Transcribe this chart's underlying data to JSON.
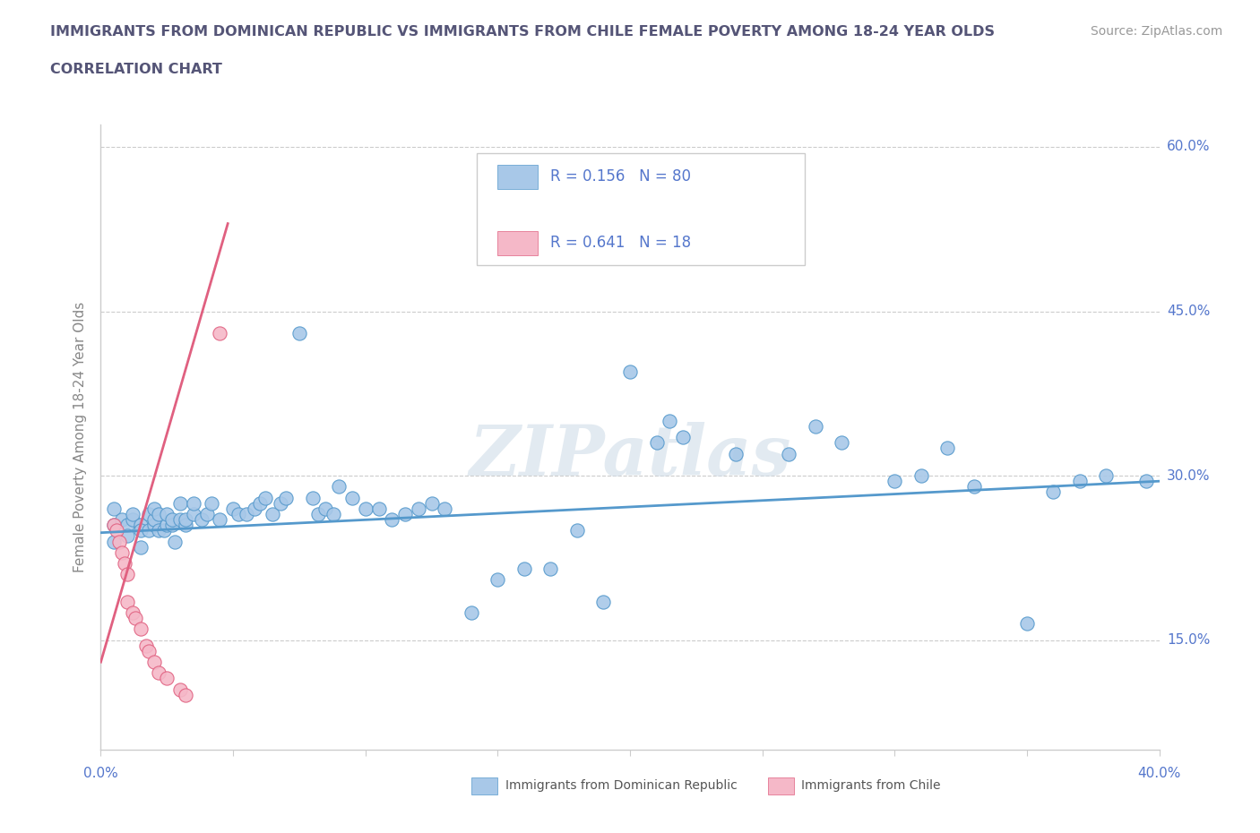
{
  "title_line1": "IMMIGRANTS FROM DOMINICAN REPUBLIC VS IMMIGRANTS FROM CHILE FEMALE POVERTY AMONG 18-24 YEAR OLDS",
  "title_line2": "CORRELATION CHART",
  "source": "Source: ZipAtlas.com",
  "xmin": 0.0,
  "xmax": 0.4,
  "ymin": 0.05,
  "ymax": 0.62,
  "legend_r1": "R = 0.156",
  "legend_n1": "N = 80",
  "legend_r2": "R = 0.641",
  "legend_n2": "N = 18",
  "legend_label1": "Immigrants from Dominican Republic",
  "legend_label2": "Immigrants from Chile",
  "color_blue": "#a8c8e8",
  "color_pink": "#f5b8c8",
  "color_blue_line": "#5599cc",
  "color_pink_line": "#e06080",
  "color_title": "#555577",
  "color_axis_label": "#5577cc",
  "watermark": "ZIPatlas",
  "blue_scatter_x": [
    0.005,
    0.005,
    0.005,
    0.008,
    0.01,
    0.01,
    0.012,
    0.012,
    0.015,
    0.015,
    0.015,
    0.018,
    0.018,
    0.02,
    0.02,
    0.02,
    0.022,
    0.022,
    0.024,
    0.025,
    0.025,
    0.027,
    0.027,
    0.028,
    0.03,
    0.03,
    0.032,
    0.032,
    0.035,
    0.035,
    0.038,
    0.04,
    0.042,
    0.045,
    0.05,
    0.052,
    0.055,
    0.058,
    0.06,
    0.062,
    0.065,
    0.068,
    0.07,
    0.075,
    0.08,
    0.082,
    0.085,
    0.088,
    0.09,
    0.095,
    0.1,
    0.105,
    0.11,
    0.115,
    0.12,
    0.125,
    0.13,
    0.14,
    0.15,
    0.16,
    0.17,
    0.18,
    0.19,
    0.2,
    0.21,
    0.215,
    0.22,
    0.24,
    0.26,
    0.27,
    0.28,
    0.3,
    0.31,
    0.32,
    0.33,
    0.35,
    0.36,
    0.37,
    0.38,
    0.395
  ],
  "blue_scatter_y": [
    0.255,
    0.27,
    0.24,
    0.26,
    0.255,
    0.245,
    0.26,
    0.265,
    0.255,
    0.25,
    0.235,
    0.265,
    0.25,
    0.255,
    0.26,
    0.27,
    0.25,
    0.265,
    0.25,
    0.255,
    0.265,
    0.255,
    0.26,
    0.24,
    0.26,
    0.275,
    0.255,
    0.26,
    0.265,
    0.275,
    0.26,
    0.265,
    0.275,
    0.26,
    0.27,
    0.265,
    0.265,
    0.27,
    0.275,
    0.28,
    0.265,
    0.275,
    0.28,
    0.43,
    0.28,
    0.265,
    0.27,
    0.265,
    0.29,
    0.28,
    0.27,
    0.27,
    0.26,
    0.265,
    0.27,
    0.275,
    0.27,
    0.175,
    0.205,
    0.215,
    0.215,
    0.25,
    0.185,
    0.395,
    0.33,
    0.35,
    0.335,
    0.32,
    0.32,
    0.345,
    0.33,
    0.295,
    0.3,
    0.325,
    0.29,
    0.165,
    0.285,
    0.295,
    0.3,
    0.295
  ],
  "pink_scatter_x": [
    0.005,
    0.006,
    0.007,
    0.008,
    0.009,
    0.01,
    0.01,
    0.012,
    0.013,
    0.015,
    0.017,
    0.018,
    0.02,
    0.022,
    0.025,
    0.03,
    0.032,
    0.045
  ],
  "pink_scatter_y": [
    0.255,
    0.25,
    0.24,
    0.23,
    0.22,
    0.21,
    0.185,
    0.175,
    0.17,
    0.16,
    0.145,
    0.14,
    0.13,
    0.12,
    0.115,
    0.105,
    0.1,
    0.43
  ],
  "blue_line_x": [
    0.0,
    0.4
  ],
  "blue_line_y": [
    0.248,
    0.295
  ],
  "pink_line_x": [
    0.0,
    0.048
  ],
  "pink_line_y": [
    0.13,
    0.53
  ]
}
